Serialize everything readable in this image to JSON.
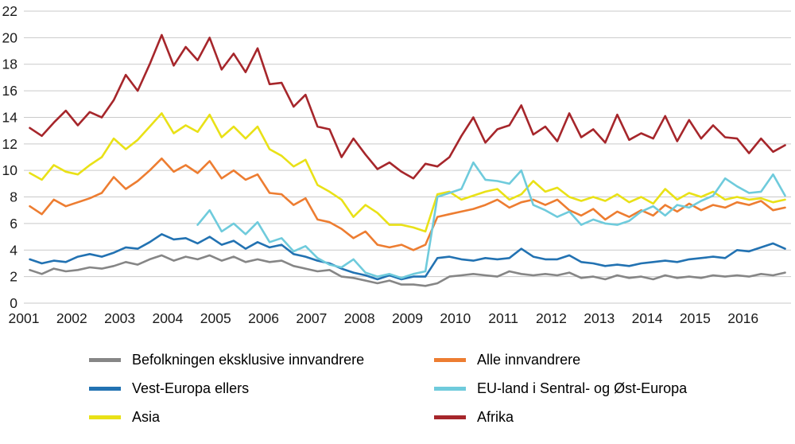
{
  "chart_data": {
    "type": "line",
    "title": "",
    "xlabel": "",
    "ylabel": "",
    "ylim": [
      0,
      22
    ],
    "y_ticks": [
      0,
      2,
      4,
      6,
      8,
      10,
      12,
      14,
      16,
      18,
      20,
      22
    ],
    "x_ticks": [
      "2001",
      "2002",
      "2003",
      "2004",
      "2005",
      "2006",
      "2007",
      "2008",
      "2009",
      "2010",
      "2011",
      "2012",
      "2013",
      "2014",
      "2015",
      "2016"
    ],
    "x_unit": "quarterly",
    "grid": true,
    "grid_color": "#c9c9c9",
    "axis_text_color": "#1a1a1a",
    "legend_position": "bottom",
    "series": [
      {
        "name": "Befolkningen eksklusive innvandrere",
        "color": "#868686",
        "values": [
          2.5,
          2.2,
          2.6,
          2.4,
          2.5,
          2.7,
          2.6,
          2.8,
          3.1,
          2.9,
          3.3,
          3.6,
          3.2,
          3.5,
          3.3,
          3.6,
          3.2,
          3.5,
          3.1,
          3.3,
          3.1,
          3.2,
          2.8,
          2.6,
          2.4,
          2.5,
          2.0,
          1.9,
          1.7,
          1.5,
          1.7,
          1.4,
          1.4,
          1.3,
          1.5,
          2.0,
          2.1,
          2.2,
          2.1,
          2.0,
          2.4,
          2.2,
          2.1,
          2.2,
          2.1,
          2.3,
          1.9,
          2.0,
          1.8,
          2.1,
          1.9,
          2.0,
          1.8,
          2.1,
          1.9,
          2.0,
          1.9,
          2.1,
          2.0,
          2.1,
          2.0,
          2.2,
          2.1,
          2.3
        ]
      },
      {
        "name": "Vest-Europa ellers",
        "color": "#2272B2",
        "values": [
          3.3,
          3.0,
          3.2,
          3.1,
          3.5,
          3.7,
          3.5,
          3.8,
          4.2,
          4.1,
          4.6,
          5.2,
          4.8,
          4.9,
          4.5,
          5.0,
          4.4,
          4.7,
          4.1,
          4.6,
          4.2,
          4.4,
          3.7,
          3.5,
          3.2,
          3.0,
          2.6,
          2.3,
          2.1,
          1.8,
          2.1,
          1.8,
          2.0,
          2.0,
          3.4,
          3.5,
          3.3,
          3.2,
          3.4,
          3.3,
          3.4,
          4.1,
          3.5,
          3.3,
          3.3,
          3.6,
          3.1,
          3.0,
          2.8,
          2.9,
          2.8,
          3.0,
          3.1,
          3.2,
          3.1,
          3.3,
          3.4,
          3.5,
          3.4,
          4.0,
          3.9,
          4.2,
          4.5,
          4.1
        ]
      },
      {
        "name": "Alle innvandrere",
        "color": "#ED7D31",
        "values": [
          7.3,
          6.7,
          7.8,
          7.3,
          7.6,
          7.9,
          8.3,
          9.5,
          8.6,
          9.2,
          10.0,
          10.9,
          9.9,
          10.4,
          9.8,
          10.7,
          9.4,
          10.0,
          9.3,
          9.7,
          8.3,
          8.2,
          7.4,
          7.9,
          6.3,
          6.1,
          5.6,
          4.9,
          5.4,
          4.4,
          4.2,
          4.4,
          4.0,
          4.4,
          6.5,
          6.7,
          6.9,
          7.1,
          7.4,
          7.8,
          7.2,
          7.6,
          7.8,
          7.4,
          7.8,
          7.0,
          6.6,
          7.1,
          6.3,
          6.9,
          6.5,
          7.0,
          6.6,
          7.4,
          6.9,
          7.5,
          7.0,
          7.4,
          7.2,
          7.6,
          7.4,
          7.7,
          7.0,
          7.2
        ]
      },
      {
        "name": "Asia",
        "color": "#E9E117",
        "values": [
          9.8,
          9.3,
          10.4,
          9.9,
          9.7,
          10.4,
          11.0,
          12.4,
          11.6,
          12.3,
          13.3,
          14.3,
          12.8,
          13.4,
          12.9,
          14.2,
          12.5,
          13.3,
          12.4,
          13.3,
          11.6,
          11.1,
          10.3,
          10.8,
          8.9,
          8.4,
          7.8,
          6.5,
          7.4,
          6.8,
          5.9,
          5.9,
          5.7,
          5.4,
          8.2,
          8.4,
          7.8,
          8.1,
          8.4,
          8.6,
          7.8,
          8.2,
          9.2,
          8.4,
          8.7,
          8.0,
          7.7,
          8.0,
          7.7,
          8.2,
          7.6,
          8.0,
          7.5,
          8.6,
          7.8,
          8.3,
          8.0,
          8.4,
          7.8,
          8.0,
          7.8,
          7.9,
          7.6,
          7.8
        ]
      },
      {
        "name": "EU-land i Sentral- og Øst-Europa",
        "color": "#6FCBDC",
        "values": [
          null,
          null,
          null,
          null,
          null,
          null,
          null,
          null,
          null,
          null,
          null,
          null,
          null,
          null,
          5.9,
          7.0,
          5.4,
          6.0,
          5.2,
          6.1,
          4.6,
          4.9,
          3.9,
          4.3,
          3.4,
          2.9,
          2.7,
          3.3,
          2.3,
          2.0,
          2.2,
          1.9,
          2.2,
          2.4,
          8.0,
          8.3,
          8.6,
          10.6,
          9.3,
          9.2,
          9.0,
          10.0,
          7.4,
          7.0,
          6.5,
          6.9,
          5.9,
          6.3,
          6.0,
          5.9,
          6.2,
          6.9,
          7.3,
          6.6,
          7.4,
          7.2,
          7.7,
          8.1,
          9.4,
          8.8,
          8.3,
          8.4,
          9.7,
          8.1
        ]
      },
      {
        "name": "Afrika",
        "color": "#A6262B",
        "values": [
          13.2,
          12.6,
          13.6,
          14.5,
          13.4,
          14.4,
          14.0,
          15.3,
          17.2,
          16.0,
          18.0,
          20.2,
          17.9,
          19.3,
          18.3,
          20.0,
          17.6,
          18.8,
          17.4,
          19.2,
          16.5,
          16.6,
          14.8,
          15.7,
          13.3,
          13.1,
          11.0,
          12.4,
          11.2,
          10.1,
          10.6,
          9.9,
          9.4,
          10.5,
          10.3,
          11.0,
          12.6,
          14.0,
          12.1,
          13.1,
          13.4,
          14.9,
          12.7,
          13.3,
          12.2,
          14.3,
          12.5,
          13.1,
          12.1,
          14.2,
          12.3,
          12.8,
          12.4,
          14.1,
          12.2,
          13.8,
          12.4,
          13.4,
          12.5,
          12.4,
          11.3,
          12.4,
          11.4,
          11.9
        ]
      }
    ]
  },
  "legend": {
    "items": [
      {
        "label": "Befolkningen eksklusive innvandrere",
        "color": "#868686"
      },
      {
        "label": "Alle innvandrere",
        "color": "#ED7D31"
      },
      {
        "label": "Vest-Europa ellers",
        "color": "#2272B2"
      },
      {
        "label": "EU-land i Sentral- og Øst-Europa",
        "color": "#6FCBDC"
      },
      {
        "label": "Asia",
        "color": "#E9E117"
      },
      {
        "label": "Afrika",
        "color": "#A6262B"
      }
    ]
  }
}
